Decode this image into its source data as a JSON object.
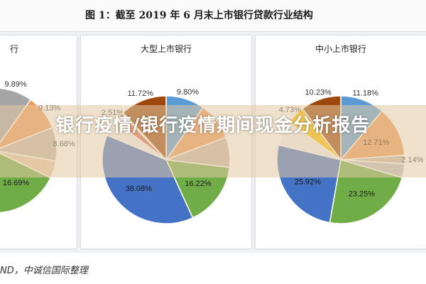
{
  "figure_title": "图 1：截至 2019 年 6 月末上市银行贷款行业结构",
  "source_text": "ND，中诚信国际整理",
  "overlay_title": "银行疫情/银行疫情期间现金分析报告",
  "chart_data": [
    {
      "type": "pie",
      "title": "行",
      "slices": [
        {
          "label": "9.89%",
          "value": 9.89,
          "color": "#a5a5a5"
        },
        {
          "label": "9.13%",
          "value": 9.13,
          "color": "#ed9a5a"
        },
        {
          "label": "8.68%",
          "value": 8.68,
          "color": "#c9b8a8"
        },
        {
          "label": "",
          "value": 4.5,
          "color": "#e6c9a8"
        },
        {
          "label": "16.69%",
          "value": 16.69,
          "color": "#70ad47"
        },
        {
          "label": "",
          "value": 51.11,
          "color": "#4472c4"
        }
      ]
    },
    {
      "type": "pie",
      "title": "大型上市银行",
      "slices": [
        {
          "label": "9.80%",
          "value": 9.8,
          "color": "#5b9bd5"
        },
        {
          "label": "",
          "value": 9.5,
          "color": "#ed9a5a"
        },
        {
          "label": "",
          "value": 7.64,
          "color": "#c9b8a8"
        },
        {
          "label": "16.22%",
          "value": 16.22,
          "color": "#70ad47"
        },
        {
          "label": "38.08%",
          "value": 38.08,
          "color": "#4472c4"
        },
        {
          "label": "",
          "value": 4.03,
          "color": "#f2f2f2"
        },
        {
          "label": "2.51%",
          "value": 2.51,
          "color": "#e06a55"
        },
        {
          "label": "",
          "value": 0.5,
          "color": "#ffc000"
        },
        {
          "label": "11.72%",
          "value": 11.72,
          "color": "#9e480e"
        }
      ]
    },
    {
      "type": "pie",
      "title": "中小上市银行",
      "slices": [
        {
          "label": "11.18%",
          "value": 11.18,
          "color": "#5b9bd5"
        },
        {
          "label": "12.71%",
          "value": 12.71,
          "color": "#ed9a5a"
        },
        {
          "label": "2.14%",
          "value": 2.14,
          "color": "#c9b8a8"
        },
        {
          "label": "",
          "value": 3.5,
          "color": "#bfbfbf"
        },
        {
          "label": "23.25%",
          "value": 23.25,
          "color": "#70ad47"
        },
        {
          "label": "25.92%",
          "value": 25.92,
          "color": "#4472c4"
        },
        {
          "label": "",
          "value": 6.34,
          "color": "#f2f2f2"
        },
        {
          "label": "4.73%",
          "value": 4.73,
          "color": "#ffc000"
        },
        {
          "label": "10.23%",
          "value": 10.23,
          "color": "#9e480e"
        }
      ]
    }
  ]
}
